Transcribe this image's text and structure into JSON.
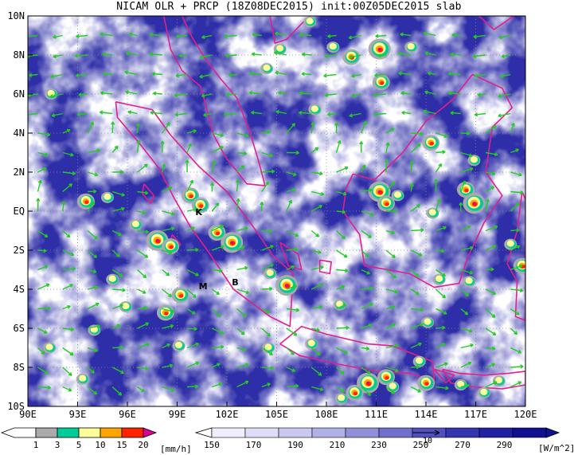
{
  "title": "NICAM OLR + PRCP (18Z08DEC2015) init:00Z05DEC2015 slab",
  "map": {
    "lon_range": [
      90,
      120
    ],
    "lat_range": [
      -10,
      10
    ],
    "x_ticks": [
      "90E",
      "93E",
      "96E",
      "99E",
      "102E",
      "105E",
      "108E",
      "111E",
      "114E",
      "117E",
      "120E"
    ],
    "y_ticks": [
      "10N",
      "8N",
      "6N",
      "4N",
      "2N",
      "EQ",
      "2S",
      "4S",
      "6S",
      "8S",
      "10S"
    ],
    "station_labels": [
      {
        "text": "K",
        "lon": 100.1,
        "lat": -0.2
      },
      {
        "text": "M",
        "lon": 100.3,
        "lat": -4.0
      },
      {
        "text": "B",
        "lon": 102.3,
        "lat": -3.8
      }
    ],
    "coastline_color": "#e0208c",
    "vector_color": "#22cc22",
    "vector_ref_label": "10",
    "grid": true
  },
  "precip_colorbar": {
    "labels": [
      "1",
      "3",
      "5",
      "10",
      "15",
      "20"
    ],
    "unit": "[mm/h]",
    "colors": [
      "#ffffff",
      "#aaaaaa",
      "#00cc99",
      "#ffff99",
      "#ffa500",
      "#ff2200",
      "#dd0099"
    ]
  },
  "olr_colorbar": {
    "labels": [
      "150",
      "170",
      "190",
      "210",
      "230",
      "250",
      "270",
      "290"
    ],
    "unit": "[W/m^2]",
    "colors": [
      "#ffffff",
      "#eeeeff",
      "#ddddf8",
      "#c8c8f0",
      "#b0b0e6",
      "#9090d8",
      "#7070cc",
      "#5050bf",
      "#3535b0",
      "#2020a0",
      "#101090"
    ]
  }
}
